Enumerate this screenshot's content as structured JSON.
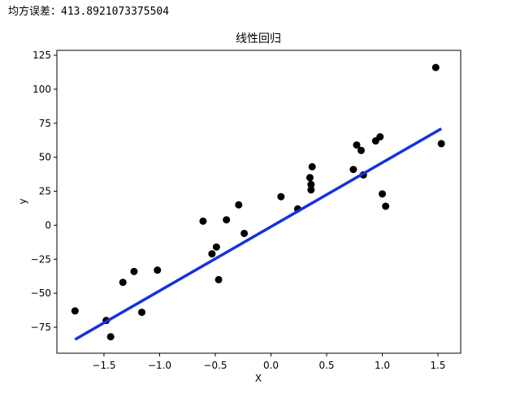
{
  "header": {
    "text": "均方误差：413.8921073375504"
  },
  "chart_data": {
    "type": "scatter",
    "title": "线性回归",
    "x_label": "X",
    "y_label": "y",
    "x": [
      -1.76,
      -1.48,
      -1.44,
      -1.33,
      -1.23,
      -1.16,
      -1.02,
      -0.61,
      -0.53,
      -0.49,
      -0.47,
      -0.4,
      -0.29,
      -0.24,
      0.09,
      0.24,
      0.35,
      0.36,
      0.36,
      0.37,
      0.74,
      0.77,
      0.81,
      0.83,
      0.94,
      0.98,
      1.0,
      1.03,
      1.48,
      1.53
    ],
    "values": [
      -63,
      -70,
      -82,
      -42,
      -34,
      -64,
      -33,
      3,
      -21,
      -16,
      -40,
      4,
      15,
      -6,
      21,
      12,
      35,
      30,
      26,
      43,
      41,
      59,
      55,
      37,
      62,
      65,
      23,
      14,
      116,
      60
    ],
    "color": "#000000",
    "fit_line": {
      "x": [
        -1.76,
        1.53
      ],
      "values": [
        -84,
        71
      ],
      "color": "#1432e0"
    },
    "xlim": [
      -1.923,
      1.704
    ],
    "ylim": [
      -94.1,
      128.6
    ],
    "xticks": [
      {
        "value": -1.5,
        "label": "−1.5"
      },
      {
        "value": -1.0,
        "label": "−1.0"
      },
      {
        "value": -0.5,
        "label": "−0.5"
      },
      {
        "value": 0.0,
        "label": "0.0"
      },
      0.5,
      {
        "value": 1.0,
        "label": "1.0"
      },
      1.5
    ],
    "yticks": [
      {
        "value": -75,
        "label": "−75"
      },
      {
        "value": -50,
        "label": "−50"
      },
      {
        "value": -25,
        "label": "−25"
      },
      0,
      25,
      50,
      75,
      100,
      125
    ]
  }
}
